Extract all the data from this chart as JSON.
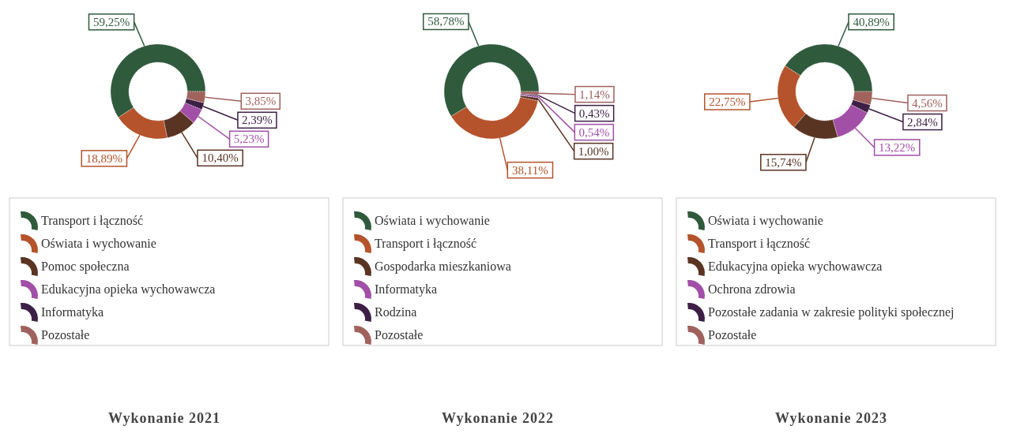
{
  "chart_data": [
    {
      "type": "donut",
      "title": "Wykonanie 2021",
      "legend": "bottom",
      "categories": [
        "Transport i łączność",
        "Oświata i wychowanie",
        "Pomoc społeczna",
        "Edukacyjna opieka wychowawcza",
        "Informatyka",
        "Pozostałe"
      ],
      "values": [
        59.25,
        18.89,
        10.4,
        5.23,
        2.39,
        3.85
      ],
      "value_labels": [
        "59,25%",
        "18,89%",
        "10,40%",
        "5,23%",
        "2,39%",
        "3,85%"
      ],
      "colors": [
        "#2f5a3c",
        "#b5532c",
        "#5a3423",
        "#a24fa8",
        "#3d1f45",
        "#a0625d"
      ]
    },
    {
      "type": "donut",
      "title": "Wykonanie 2022",
      "legend": "bottom",
      "categories": [
        "Oświata i wychowanie",
        "Transport i łączność",
        "Gospodarka mieszkaniowa",
        "Informatyka",
        "Rodzina",
        "Pozostałe"
      ],
      "values": [
        58.78,
        38.11,
        1.0,
        0.54,
        0.43,
        1.14
      ],
      "value_labels": [
        "58,78%",
        "38,11%",
        "1,00%",
        "0,54%",
        "0,43%",
        "1,14%"
      ],
      "colors": [
        "#2f5a3c",
        "#b5532c",
        "#5a3423",
        "#a24fa8",
        "#3d1f45",
        "#a0625d"
      ]
    },
    {
      "type": "donut",
      "title": "Wykonanie 2023",
      "legend": "bottom",
      "categories": [
        "Oświata i wychowanie",
        "Transport i łączność",
        "Edukacyjna opieka wychowawcza",
        "Ochrona zdrowia",
        "Pozostałe zadania w zakresie polityki społecznej",
        "Pozostałe"
      ],
      "values": [
        40.89,
        22.75,
        15.74,
        13.22,
        2.84,
        4.56
      ],
      "value_labels": [
        "40,89%",
        "22,75%",
        "15,74%",
        "13,22%",
        "2,84%",
        "4,56%"
      ],
      "colors": [
        "#2f5a3c",
        "#b5532c",
        "#5a3423",
        "#a24fa8",
        "#3d1f45",
        "#a0625d"
      ]
    }
  ]
}
